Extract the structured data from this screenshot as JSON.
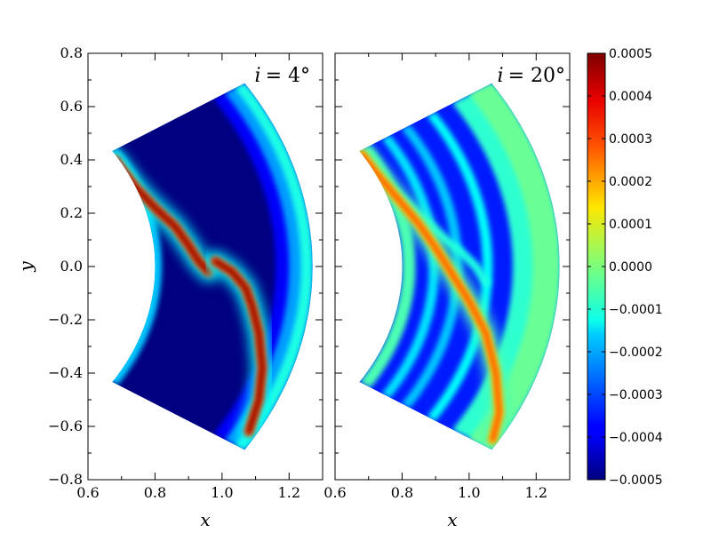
{
  "chart_data": {
    "type": "heatmap",
    "colormap": "jet",
    "panels": [
      {
        "annotation": "i = 4°",
        "annotation_italic": "i",
        "annotation_rest": "= 4°",
        "xlabel": "x",
        "ylabel": "y",
        "xlim": [
          0.6,
          1.3
        ],
        "ylim": [
          -0.8,
          0.8
        ],
        "xticks": [
          "0.6",
          "0.8",
          "1.0",
          "1.2"
        ],
        "yticks": [
          "0.8",
          "0.6",
          "0.4",
          "0.2",
          "0.0",
          "−0.2",
          "−0.4",
          "−0.6",
          "−0.8"
        ],
        "wedge": {
          "r_inner": 0.8,
          "r_outer": 1.27,
          "half_angle_deg": 32.8
        },
        "features": [
          {
            "kind": "inner-rim-band",
            "value": -0.0001
          },
          {
            "kind": "outer-rim-band",
            "value": -0.0001
          },
          {
            "kind": "spiral-arm",
            "points": [
              [
                0.68,
                0.4
              ],
              [
                0.74,
                0.3
              ],
              [
                0.8,
                0.22
              ],
              [
                0.86,
                0.15
              ],
              [
                0.9,
                0.08
              ],
              [
                0.93,
                0.02
              ],
              [
                0.96,
                -0.02
              ]
            ],
            "peak": 0.0005
          },
          {
            "kind": "spiral-arm",
            "points": [
              [
                0.98,
                0.02
              ],
              [
                1.03,
                -0.02
              ],
              [
                1.07,
                -0.08
              ],
              [
                1.09,
                -0.15
              ],
              [
                1.11,
                -0.25
              ],
              [
                1.12,
                -0.38
              ],
              [
                1.11,
                -0.5
              ],
              [
                1.08,
                -0.62
              ]
            ],
            "peak": 0.0005
          }
        ]
      },
      {
        "annotation": "i = 20°",
        "annotation_italic": "i",
        "annotation_rest": "= 20°",
        "xlabel": "x",
        "ylabel": "",
        "xlim": [
          0.6,
          1.3
        ],
        "ylim": [
          -0.8,
          0.8
        ],
        "xticks": [
          "0.6",
          "0.8",
          "1.0",
          "1.2"
        ],
        "wedge": {
          "r_inner": 0.8,
          "r_outer": 1.27,
          "half_angle_deg": 32.8
        },
        "features": [
          {
            "kind": "spiral-arm",
            "points": [
              [
                0.68,
                0.42
              ],
              [
                0.73,
                0.34
              ],
              [
                0.79,
                0.25
              ],
              [
                0.85,
                0.16
              ],
              [
                0.9,
                0.07
              ],
              [
                0.95,
                -0.03
              ],
              [
                1.0,
                -0.13
              ],
              [
                1.05,
                -0.25
              ],
              [
                1.08,
                -0.4
              ],
              [
                1.09,
                -0.55
              ],
              [
                1.07,
                -0.65
              ]
            ],
            "peak": 0.0003
          }
        ]
      }
    ],
    "colorbar": {
      "min": -0.0005,
      "max": 0.0005,
      "ticks": [
        "0.0005",
        "0.0004",
        "0.0003",
        "0.0002",
        "0.0001",
        "0.0000",
        "−0.0001",
        "−0.0002",
        "−0.0003",
        "−0.0004",
        "−0.0005"
      ]
    }
  }
}
